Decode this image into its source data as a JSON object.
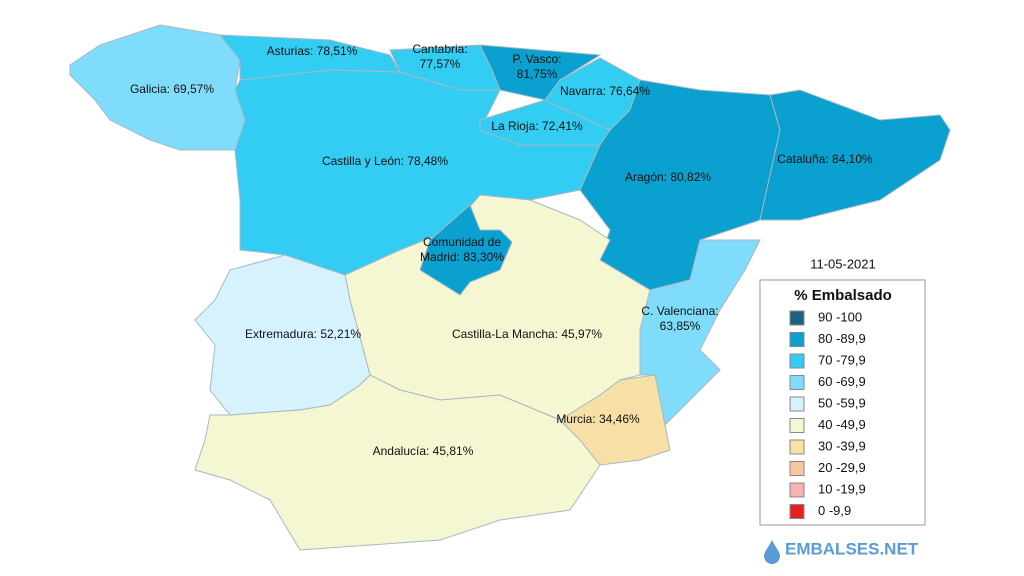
{
  "regions": [
    {
      "label": [
        "Galicia: 69,57%"
      ],
      "color": "#7fdcfb"
    },
    {
      "label": [
        "Asturias: 78,51%"
      ],
      "color": "#33ccf2"
    },
    {
      "label": [
        "Cantabria:",
        "77,57%"
      ],
      "color": "#33ccf2"
    },
    {
      "label": [
        "Castilla y León: 78,48%"
      ],
      "color": "#33ccf2"
    },
    {
      "label": [
        "P. Vasco:",
        "81,75%"
      ],
      "color": "#0aa0cf"
    },
    {
      "label": [
        "Navarra: 76,64%"
      ],
      "color": "#33ccf2"
    },
    {
      "label": [
        "La Rioja: 72,41%"
      ],
      "color": "#33ccf2"
    },
    {
      "label": [
        "Aragón: 80,82%"
      ],
      "color": "#0aa0cf"
    },
    {
      "label": [
        "Cataluña: 84,10%"
      ],
      "color": "#0aa0cf"
    },
    {
      "label": [
        "Castilla-La Mancha: 45,97%"
      ],
      "color": "#f5f7d2"
    },
    {
      "label": [
        "Comunidad de",
        "Madrid: 83,30%"
      ],
      "color": "#0aa0cf"
    },
    {
      "label": [
        "C. Valenciana:",
        "63,85%"
      ],
      "color": "#7fdcfb"
    },
    {
      "label": [
        "Extremadura: 52,21%"
      ],
      "color": "#d6f3fd"
    },
    {
      "label": [
        "Andalucía: 45,81%"
      ],
      "color": "#f5f7d2"
    },
    {
      "label": [
        "Murcia: 34,46%"
      ],
      "color": "#f7e0a6"
    }
  ],
  "legend": {
    "date": "11-05-2021",
    "title": "% Embalsado",
    "items": [
      {
        "label": "90 -100",
        "color": "#1b6280"
      },
      {
        "label": "80 -89,9",
        "color": "#0aa0cf"
      },
      {
        "label": "70 -79,9",
        "color": "#33ccf2"
      },
      {
        "label": "60 -69,9",
        "color": "#7fdcfb"
      },
      {
        "label": "50 -59,9",
        "color": "#d6f3fd"
      },
      {
        "label": "40 -49,9",
        "color": "#f5f7d2"
      },
      {
        "label": "30 -39,9",
        "color": "#f7e0a6"
      },
      {
        "label": "20 -29,9",
        "color": "#f7c7a0"
      },
      {
        "label": "10 -19,9",
        "color": "#f7b2b2"
      },
      {
        "label": "0 -9,9",
        "color": "#e82020"
      }
    ]
  },
  "logo": "EMBALSES.NET"
}
